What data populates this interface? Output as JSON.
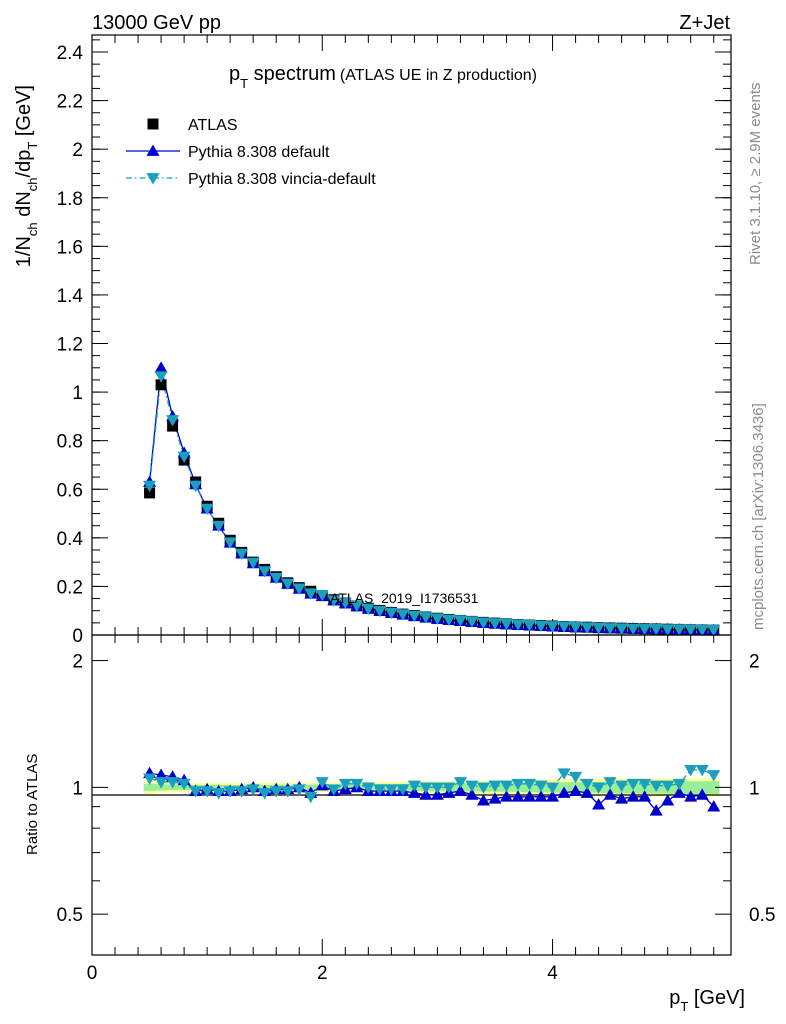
{
  "header": {
    "left": "13000 GeV pp",
    "right": "Z+Jet"
  },
  "side_labels": {
    "rivet": "Rivet 3.1.10, ≥ 2.9M events",
    "mcplots": "mcplots.cern.ch [arXiv:1306.3436]"
  },
  "watermark": "ATLAS_2019_I1736531",
  "colors": {
    "data": "#000000",
    "default": "#0000cc",
    "vincia": "#1a9fbf",
    "band_outer": "#ffff99",
    "band_inner": "#99ee99"
  },
  "chart_data": [
    {
      "type": "line",
      "title_main": "p",
      "title_sub": "T",
      "title_rest": " spectrum",
      "title_note": "(ATLAS UE in Z production)",
      "ylabel": "1/N_ch dN_ch/dp_T [GeV]",
      "ylim": [
        0,
        2.47
      ],
      "xlim": [
        0,
        5.55
      ],
      "yticks": [
        "0",
        "0.2",
        "0.4",
        "0.6",
        "0.8",
        "1",
        "1.2",
        "1.4",
        "1.6",
        "1.8",
        "2",
        "2.2",
        "2.4"
      ],
      "legend": [
        "ATLAS",
        "Pythia 8.308 default",
        "Pythia 8.308 vincia-default"
      ],
      "legend_position": "top-left",
      "x": [
        0.5,
        0.6,
        0.7,
        0.8,
        0.9,
        1.0,
        1.1,
        1.2,
        1.3,
        1.4,
        1.5,
        1.6,
        1.7,
        1.8,
        1.9,
        2.0,
        2.1,
        2.2,
        2.3,
        2.4,
        2.5,
        2.6,
        2.7,
        2.8,
        2.9,
        3.0,
        3.1,
        3.2,
        3.3,
        3.4,
        3.5,
        3.6,
        3.7,
        3.8,
        3.9,
        4.0,
        4.1,
        4.2,
        4.3,
        4.4,
        4.5,
        4.6,
        4.7,
        4.8,
        4.9,
        5.0,
        5.1,
        5.2,
        5.3,
        5.4
      ],
      "series": [
        {
          "name": "ATLAS",
          "values": [
            0.585,
            1.03,
            0.86,
            0.72,
            0.63,
            0.53,
            0.46,
            0.39,
            0.34,
            0.3,
            0.27,
            0.24,
            0.215,
            0.195,
            0.18,
            0.162,
            0.145,
            0.132,
            0.12,
            0.11,
            0.101,
            0.093,
            0.086,
            0.08,
            0.074,
            0.069,
            0.064,
            0.06,
            0.056,
            0.052,
            0.049,
            0.046,
            0.043,
            0.041,
            0.039,
            0.037,
            0.035,
            0.033,
            0.032,
            0.03,
            0.029,
            0.028,
            0.027,
            0.026,
            0.025,
            0.024,
            0.023,
            0.022,
            0.021,
            0.02
          ]
        },
        {
          "name": "Pythia 8.308 default",
          "values": [
            0.63,
            1.1,
            0.9,
            0.75,
            0.62,
            0.52,
            0.45,
            0.38,
            0.335,
            0.295,
            0.262,
            0.235,
            0.21,
            0.19,
            0.17,
            0.16,
            0.142,
            0.13,
            0.118,
            0.108,
            0.099,
            0.091,
            0.084,
            0.077,
            0.071,
            0.066,
            0.061,
            0.057,
            0.053,
            0.049,
            0.046,
            0.043,
            0.041,
            0.039,
            0.037,
            0.035,
            0.034,
            0.032,
            0.031,
            0.029,
            0.028,
            0.027,
            0.026,
            0.025,
            0.024,
            0.023,
            0.022,
            0.021,
            0.02,
            0.019
          ]
        },
        {
          "name": "Pythia 8.308 vincia-default",
          "values": [
            0.615,
            1.065,
            0.885,
            0.735,
            0.615,
            0.52,
            0.45,
            0.382,
            0.335,
            0.298,
            0.263,
            0.235,
            0.212,
            0.192,
            0.172,
            0.165,
            0.143,
            0.134,
            0.122,
            0.109,
            0.1,
            0.092,
            0.086,
            0.08,
            0.074,
            0.069,
            0.064,
            0.061,
            0.057,
            0.052,
            0.049,
            0.047,
            0.044,
            0.042,
            0.039,
            0.037,
            0.036,
            0.034,
            0.032,
            0.03,
            0.029,
            0.028,
            0.027,
            0.026,
            0.025,
            0.024,
            0.024,
            0.023,
            0.022,
            0.021
          ]
        }
      ]
    },
    {
      "type": "line",
      "ylabel": "Ratio to ATLAS",
      "xlabel": "p_T [GeV]",
      "ylim": [
        0.4,
        2.3
      ],
      "log_y": true,
      "xlim": [
        0,
        5.55
      ],
      "xticks": [
        "0",
        "2",
        "4"
      ],
      "yticks": [
        "0.5",
        "1",
        "2"
      ],
      "x": [
        0.5,
        0.6,
        0.7,
        0.8,
        0.9,
        1.0,
        1.1,
        1.2,
        1.3,
        1.4,
        1.5,
        1.6,
        1.7,
        1.8,
        1.9,
        2.0,
        2.1,
        2.2,
        2.3,
        2.4,
        2.5,
        2.6,
        2.7,
        2.8,
        2.9,
        3.0,
        3.1,
        3.2,
        3.3,
        3.4,
        3.5,
        3.6,
        3.7,
        3.8,
        3.9,
        4.0,
        4.1,
        4.2,
        4.3,
        4.4,
        4.5,
        4.6,
        4.7,
        4.8,
        4.9,
        5.0,
        5.1,
        5.2,
        5.3,
        5.4
      ],
      "band_outer": [
        0.035,
        0.03,
        0.028,
        0.026,
        0.025,
        0.024,
        0.024,
        0.024,
        0.024,
        0.024,
        0.025,
        0.025,
        0.026,
        0.026,
        0.027,
        0.027,
        0.028,
        0.028,
        0.029,
        0.029,
        0.03,
        0.03,
        0.031,
        0.032,
        0.033,
        0.034,
        0.035,
        0.036,
        0.037,
        0.038,
        0.039,
        0.04,
        0.041,
        0.042,
        0.043,
        0.044,
        0.045,
        0.046,
        0.047,
        0.048,
        0.049,
        0.05,
        0.05,
        0.05,
        0.05,
        0.05,
        0.05,
        0.05,
        0.05,
        0.05
      ],
      "band_inner": [
        0.02,
        0.017,
        0.015,
        0.014,
        0.013,
        0.013,
        0.013,
        0.013,
        0.013,
        0.013,
        0.013,
        0.014,
        0.014,
        0.014,
        0.015,
        0.015,
        0.016,
        0.016,
        0.017,
        0.017,
        0.018,
        0.018,
        0.019,
        0.019,
        0.02,
        0.02,
        0.021,
        0.022,
        0.022,
        0.023,
        0.024,
        0.024,
        0.025,
        0.026,
        0.027,
        0.027,
        0.028,
        0.029,
        0.03,
        0.03,
        0.031,
        0.032,
        0.032,
        0.033,
        0.033,
        0.034,
        0.034,
        0.035,
        0.035,
        0.035
      ],
      "series": [
        {
          "name": "Pythia 8.308 default",
          "values": [
            1.08,
            1.07,
            1.06,
            1.04,
            0.98,
            0.99,
            0.98,
            0.98,
            0.99,
            1.0,
            0.98,
            0.99,
            0.99,
            1.0,
            0.97,
            1.01,
            0.98,
            0.99,
            1.0,
            0.98,
            0.98,
            0.98,
            0.98,
            0.97,
            0.96,
            0.96,
            0.97,
            0.98,
            0.96,
            0.93,
            0.94,
            0.95,
            0.95,
            0.95,
            0.95,
            0.95,
            0.97,
            0.98,
            0.97,
            0.91,
            0.96,
            0.94,
            0.95,
            0.95,
            0.88,
            0.93,
            0.97,
            0.95,
            0.96,
            0.9
          ]
        },
        {
          "name": "Pythia 8.308 vincia-default",
          "values": [
            1.05,
            1.03,
            1.03,
            1.02,
            0.98,
            0.98,
            0.97,
            0.98,
            0.98,
            0.99,
            0.97,
            0.98,
            0.98,
            0.99,
            0.95,
            1.03,
            0.99,
            1.02,
            1.02,
            1.0,
            0.99,
            0.99,
            0.99,
            1.01,
            1.0,
            1.0,
            1.0,
            1.03,
            1.01,
            1.0,
            1.01,
            1.01,
            1.02,
            1.02,
            1.01,
            1.0,
            1.08,
            1.06,
            1.02,
            1.0,
            1.03,
            1.01,
            1.02,
            1.02,
            1.01,
            1.01,
            1.02,
            1.1,
            1.1,
            1.07
          ]
        }
      ]
    }
  ]
}
